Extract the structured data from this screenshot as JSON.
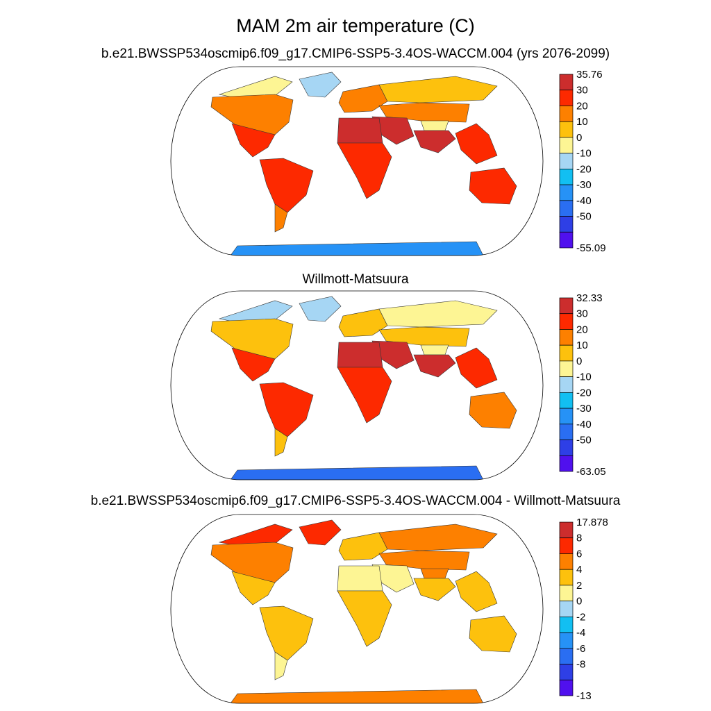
{
  "title": "MAM 2m air temperature (C)",
  "colormap": [
    "#5010ee",
    "#2e3fe6",
    "#2a6ef2",
    "#2692f6",
    "#12bff2",
    "#a6d6f4",
    "#fdf594",
    "#fdc10d",
    "#fd8000",
    "#fd2900",
    "#cc2d2d"
  ],
  "panels": [
    {
      "id": "model",
      "title": "b.e21.BWSSP534oscmip6.f09_g17.CMIP6-SSP5-3.4OS-WACCM.004 (yrs 2076-2099)",
      "labels": [
        "35.76",
        "30",
        "20",
        "10",
        "0",
        "-10",
        "-20",
        "-30",
        "-40",
        "-50",
        "-55.09"
      ],
      "values": [
        35.76,
        30,
        20,
        10,
        0,
        -10,
        -20,
        -30,
        -40,
        -50,
        -55.09
      ]
    },
    {
      "id": "obs",
      "title": "Willmott-Matsuura",
      "labels": [
        "32.33",
        "30",
        "20",
        "10",
        "0",
        "-10",
        "-20",
        "-30",
        "-40",
        "-50",
        "-63.05"
      ],
      "values": [
        32.33,
        30,
        20,
        10,
        0,
        -10,
        -20,
        -30,
        -40,
        -50,
        -63.05
      ]
    },
    {
      "id": "diff",
      "title": "b.e21.BWSSP534oscmip6.f09_g17.CMIP6-SSP5-3.4OS-WACCM.004 - Willmott-Matsuura",
      "labels": [
        "17.878",
        "8",
        "6",
        "4",
        "2",
        "0",
        "-2",
        "-4",
        "-6",
        "-8",
        "-13"
      ],
      "values": [
        17.878,
        8,
        6,
        4,
        2,
        0,
        -2,
        -4,
        -6,
        -8,
        -13
      ]
    }
  ],
  "regions": {
    "model": {
      "arctic": 6,
      "north_america": 8,
      "north_america_south": 9,
      "greenland": 5,
      "europe": 8,
      "siberia": 7,
      "central_asia": 8,
      "tibet": 6,
      "south_asia": 10,
      "middle_east": 10,
      "africa": 9,
      "sahara": 10,
      "south_america": 9,
      "patagonia": 8,
      "australia": 9,
      "se_asia": 9,
      "antarctica": 3
    },
    "obs": {
      "arctic": 5,
      "north_america": 7,
      "north_america_south": 9,
      "greenland": 5,
      "europe": 7,
      "siberia": 6,
      "central_asia": 7,
      "tibet": 6,
      "south_asia": 10,
      "middle_east": 10,
      "africa": 9,
      "sahara": 10,
      "south_america": 9,
      "patagonia": 7,
      "australia": 8,
      "se_asia": 9,
      "antarctica": 2
    },
    "diff": {
      "arctic": 9,
      "north_america": 8,
      "north_america_south": 7,
      "greenland": 9,
      "europe": 7,
      "siberia": 8,
      "central_asia": 8,
      "tibet": 8,
      "south_asia": 7,
      "middle_east": 6,
      "africa": 7,
      "sahara": 6,
      "south_america": 7,
      "patagonia": 6,
      "australia": 7,
      "se_asia": 7,
      "antarctica": 8
    }
  }
}
